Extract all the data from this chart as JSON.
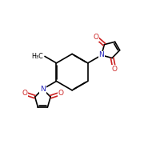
{
  "bg_color": "#ffffff",
  "bond_color": "#000000",
  "n_color": "#2222bb",
  "o_color": "#cc2222",
  "lw": 1.2,
  "figsize": [
    2.0,
    2.0
  ],
  "dpi": 100,
  "ch3_label": "H₃C",
  "n_label": "N",
  "o_label": "O"
}
